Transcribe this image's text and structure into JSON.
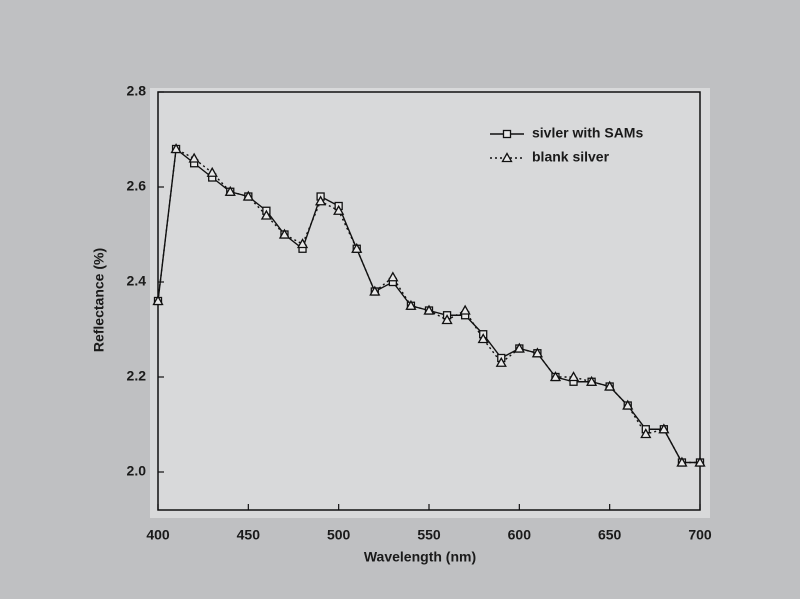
{
  "chart_data": {
    "type": "line",
    "x_label": "Wavelength (nm)",
    "y_label": "Reflectance (%)",
    "x": [
      400,
      410,
      420,
      430,
      440,
      450,
      460,
      470,
      480,
      490,
      500,
      510,
      520,
      530,
      540,
      550,
      560,
      570,
      580,
      590,
      600,
      610,
      620,
      630,
      640,
      650,
      660,
      670,
      680,
      690,
      700
    ],
    "series": [
      {
        "name": "sivler with SAMs",
        "color": "#111111",
        "marker": "square",
        "line_style": "solid",
        "values": [
          2.36,
          2.68,
          2.65,
          2.62,
          2.59,
          2.58,
          2.55,
          2.5,
          2.47,
          2.58,
          2.56,
          2.47,
          2.38,
          2.4,
          2.35,
          2.34,
          2.33,
          2.33,
          2.29,
          2.24,
          2.26,
          2.25,
          2.2,
          2.19,
          2.19,
          2.18,
          2.14,
          2.09,
          2.09,
          2.02,
          2.02
        ]
      },
      {
        "name": "blank silver",
        "color": "#111111",
        "marker": "triangle",
        "line_style": "dotted",
        "values": [
          2.36,
          2.68,
          2.66,
          2.63,
          2.59,
          2.58,
          2.54,
          2.5,
          2.48,
          2.57,
          2.55,
          2.47,
          2.38,
          2.41,
          2.35,
          2.34,
          2.32,
          2.34,
          2.28,
          2.23,
          2.26,
          2.25,
          2.2,
          2.2,
          2.19,
          2.18,
          2.14,
          2.08,
          2.09,
          2.02,
          2.02
        ]
      }
    ],
    "xlim": [
      400,
      700
    ],
    "xticks": [
      400,
      450,
      500,
      550,
      600,
      650,
      700
    ],
    "ylim": [
      1.92,
      2.8
    ],
    "yticks": [
      {
        "value": 2,
        "label": "2.0"
      },
      2.2,
      2.4,
      2.6,
      2.8
    ],
    "grid": false,
    "legend": "upper right"
  }
}
